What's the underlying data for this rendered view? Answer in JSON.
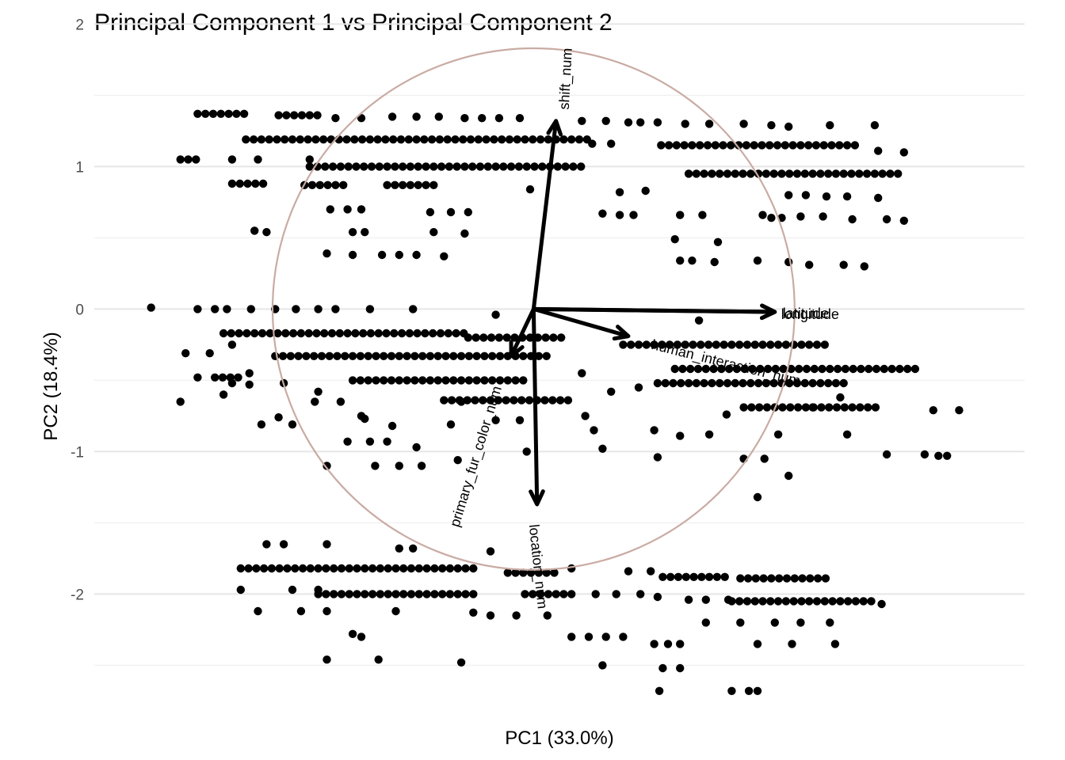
{
  "chart_data": {
    "type": "scatter",
    "title": "Principal Component 1 vs Principal Component 2",
    "xlabel": "PC1 (33.0%)",
    "ylabel": "PC2 (18.4%)",
    "xlim": [
      -2.55,
      2.85
    ],
    "ylim": [
      -2.72,
      2.08
    ],
    "x_ticks": [],
    "y_ticks": [
      -2,
      -1,
      0,
      1,
      2
    ],
    "grid": true,
    "legend": "none",
    "correlation_circle_radius": 1.83,
    "loadings": [
      {
        "label": "shift_num",
        "x": 0.13,
        "y": 1.32
      },
      {
        "label": "latitude",
        "x": 1.4,
        "y": -0.02
      },
      {
        "label": "longitude",
        "x": 1.4,
        "y": -0.02
      },
      {
        "label": "human_interaction_num",
        "x": 0.55,
        "y": -0.19
      },
      {
        "label": "primary_fur_color_num",
        "x": -0.13,
        "y": -0.33
      },
      {
        "label": "location_num",
        "x": 0.02,
        "y": -1.37
      }
    ],
    "band_segments": [
      {
        "y": 1.37,
        "x": [
          -1.95,
          -1.68
        ]
      },
      {
        "y": 1.36,
        "x": [
          -1.48,
          -1.24
        ]
      },
      {
        "y": 1.19,
        "x": [
          -1.67,
          0.32
        ]
      },
      {
        "y": 1.15,
        "x": [
          0.74,
          1.9
        ]
      },
      {
        "y": 1.05,
        "x": [
          -2.05,
          -1.95
        ]
      },
      {
        "y": 1.0,
        "x": [
          -1.3,
          0.3
        ]
      },
      {
        "y": 0.95,
        "x": [
          0.9,
          2.12
        ]
      },
      {
        "y": 0.88,
        "x": [
          -1.75,
          -1.55
        ]
      },
      {
        "y": 0.87,
        "x": [
          -1.33,
          -1.1
        ]
      },
      {
        "y": 0.87,
        "x": [
          -0.85,
          -0.55
        ]
      },
      {
        "y": -0.17,
        "x": [
          -1.8,
          -0.4
        ]
      },
      {
        "y": -0.2,
        "x": [
          -0.38,
          0.2
        ]
      },
      {
        "y": -0.25,
        "x": [
          0.52,
          1.72
        ]
      },
      {
        "y": -0.33,
        "x": [
          -1.5,
          0.1
        ]
      },
      {
        "y": -0.42,
        "x": [
          0.82,
          2.25
        ]
      },
      {
        "y": -0.48,
        "x": [
          -1.85,
          -1.7
        ]
      },
      {
        "y": -0.5,
        "x": [
          -1.05,
          -0.05
        ]
      },
      {
        "y": -0.52,
        "x": [
          0.72,
          1.82
        ]
      },
      {
        "y": -0.64,
        "x": [
          -0.52,
          0.22
        ]
      },
      {
        "y": -0.69,
        "x": [
          1.22,
          2.02
        ]
      },
      {
        "y": -1.82,
        "x": [
          -1.7,
          -0.35
        ]
      },
      {
        "y": -1.85,
        "x": [
          -0.15,
          0.12
        ]
      },
      {
        "y": -1.88,
        "x": [
          0.75,
          1.12
        ]
      },
      {
        "y": -1.89,
        "x": [
          1.2,
          1.72
        ]
      },
      {
        "y": -2.0,
        "x": [
          -1.25,
          -0.35
        ]
      },
      {
        "y": -2.0,
        "x": [
          -0.05,
          0.25
        ]
      },
      {
        "y": -2.05,
        "x": [
          1.15,
          1.97
        ]
      }
    ],
    "points": [
      [
        -2.22,
        0.01
      ],
      [
        -1.95,
        0.0
      ],
      [
        -1.85,
        0.0
      ],
      [
        -1.78,
        0.0
      ],
      [
        -1.64,
        0.0
      ],
      [
        -1.5,
        0.0
      ],
      [
        -1.38,
        0.0
      ],
      [
        -1.25,
        0.0
      ],
      [
        -1.15,
        0.0
      ],
      [
        -0.95,
        0.0
      ],
      [
        -0.7,
        0.0
      ],
      [
        -0.22,
        -0.04
      ],
      [
        0.96,
        -0.08
      ],
      [
        -2.02,
        -0.31
      ],
      [
        -1.88,
        -0.31
      ],
      [
        -1.95,
        -0.48
      ],
      [
        -1.75,
        -0.52
      ],
      [
        -2.05,
        -0.65
      ],
      [
        -1.8,
        -0.6
      ],
      [
        -1.65,
        -0.45
      ],
      [
        -1.45,
        -0.52
      ],
      [
        -1.58,
        -0.81
      ],
      [
        -1.48,
        -0.76
      ],
      [
        -1.4,
        -0.81
      ],
      [
        -1.27,
        -0.65
      ],
      [
        -1.12,
        -0.65
      ],
      [
        -0.98,
        -0.77
      ],
      [
        -1.08,
        -0.93
      ],
      [
        -0.95,
        -0.93
      ],
      [
        -0.85,
        -0.93
      ],
      [
        -0.82,
        -0.82
      ],
      [
        -0.68,
        -0.97
      ],
      [
        -0.48,
        -0.81
      ],
      [
        -0.42,
        -0.65
      ],
      [
        -0.22,
        -0.78
      ],
      [
        -0.08,
        -0.78
      ],
      [
        -0.04,
        -1.0
      ],
      [
        -0.44,
        -1.06
      ],
      [
        -0.65,
        -1.1
      ],
      [
        -0.78,
        -1.1
      ],
      [
        -0.92,
        -1.1
      ],
      [
        -1.2,
        -1.1
      ],
      [
        -1.65,
        -0.53
      ],
      [
        -1.75,
        -0.25
      ],
      [
        -1.0,
        -0.75
      ],
      [
        -1.25,
        -0.58
      ],
      [
        0.28,
        -0.45
      ],
      [
        0.45,
        -0.58
      ],
      [
        0.3,
        -0.75
      ],
      [
        0.35,
        -0.85
      ],
      [
        0.4,
        -0.98
      ],
      [
        0.7,
        -0.85
      ],
      [
        0.85,
        -0.89
      ],
      [
        1.02,
        -0.88
      ],
      [
        1.12,
        -0.74
      ],
      [
        0.72,
        -1.04
      ],
      [
        1.22,
        -1.05
      ],
      [
        1.34,
        -1.05
      ],
      [
        1.48,
        -1.17
      ],
      [
        1.42,
        -0.88
      ],
      [
        1.62,
        -0.69
      ],
      [
        1.78,
        -0.62
      ],
      [
        1.82,
        -0.88
      ],
      [
        2.05,
        -1.02
      ],
      [
        2.27,
        -1.02
      ],
      [
        2.35,
        -1.03
      ],
      [
        2.4,
        -1.03
      ],
      [
        2.32,
        -0.71
      ],
      [
        2.47,
        -0.71
      ],
      [
        1.3,
        -1.32
      ],
      [
        0.61,
        -0.55
      ],
      [
        -1.62,
        0.55
      ],
      [
        -1.55,
        0.54
      ],
      [
        -1.18,
        0.7
      ],
      [
        -1.08,
        0.7
      ],
      [
        -1.0,
        0.7
      ],
      [
        -1.05,
        0.54
      ],
      [
        -0.98,
        0.54
      ],
      [
        -0.58,
        0.54
      ],
      [
        -0.4,
        0.53
      ],
      [
        -0.6,
        0.68
      ],
      [
        -0.48,
        0.68
      ],
      [
        -0.38,
        0.68
      ],
      [
        -1.2,
        0.39
      ],
      [
        -1.05,
        0.38
      ],
      [
        -0.88,
        0.38
      ],
      [
        -0.78,
        0.38
      ],
      [
        -0.68,
        0.38
      ],
      [
        -0.52,
        0.37
      ],
      [
        0.4,
        0.67
      ],
      [
        0.5,
        0.66
      ],
      [
        0.58,
        0.66
      ],
      [
        0.85,
        0.66
      ],
      [
        0.98,
        0.66
      ],
      [
        0.82,
        0.49
      ],
      [
        0.85,
        0.34
      ],
      [
        0.92,
        0.34
      ],
      [
        1.07,
        0.47
      ],
      [
        1.05,
        0.33
      ],
      [
        1.33,
        0.66
      ],
      [
        1.38,
        0.64
      ],
      [
        1.44,
        0.64
      ],
      [
        1.3,
        0.34
      ],
      [
        1.48,
        0.33
      ],
      [
        1.55,
        0.65
      ],
      [
        1.68,
        0.65
      ],
      [
        1.85,
        0.63
      ],
      [
        2.05,
        0.63
      ],
      [
        2.15,
        0.62
      ],
      [
        1.48,
        0.8
      ],
      [
        1.58,
        0.8
      ],
      [
        1.7,
        0.79
      ],
      [
        1.82,
        0.79
      ],
      [
        2.0,
        0.78
      ],
      [
        1.6,
        0.31
      ],
      [
        1.8,
        0.31
      ],
      [
        1.92,
        0.3
      ],
      [
        -1.75,
        1.05
      ],
      [
        -1.6,
        1.05
      ],
      [
        -1.3,
        1.05
      ],
      [
        -0.82,
        1.35
      ],
      [
        -0.68,
        1.35
      ],
      [
        -0.55,
        1.35
      ],
      [
        -0.4,
        1.34
      ],
      [
        -0.3,
        1.34
      ],
      [
        -0.2,
        1.34
      ],
      [
        -0.08,
        1.34
      ],
      [
        0.28,
        1.32
      ],
      [
        0.42,
        1.32
      ],
      [
        0.55,
        1.31
      ],
      [
        0.62,
        1.31
      ],
      [
        0.72,
        1.31
      ],
      [
        0.88,
        1.3
      ],
      [
        1.02,
        1.3
      ],
      [
        1.22,
        1.3
      ],
      [
        1.38,
        1.29
      ],
      [
        1.48,
        1.28
      ],
      [
        1.72,
        1.29
      ],
      [
        1.98,
        1.29
      ],
      [
        2.0,
        1.11
      ],
      [
        2.15,
        1.1
      ],
      [
        -1.15,
        1.34
      ],
      [
        -1.0,
        1.34
      ],
      [
        0.5,
        0.82
      ],
      [
        0.65,
        0.83
      ],
      [
        -0.02,
        0.84
      ],
      [
        0.34,
        1.16
      ],
      [
        0.45,
        1.16
      ],
      [
        -1.6,
        -2.12
      ],
      [
        -1.35,
        -2.12
      ],
      [
        -1.2,
        -2.12
      ],
      [
        -0.8,
        -2.12
      ],
      [
        -0.35,
        -2.13
      ],
      [
        -0.25,
        -2.15
      ],
      [
        -0.1,
        -2.15
      ],
      [
        0.08,
        -2.15
      ],
      [
        -1.05,
        -2.28
      ],
      [
        -1.0,
        -2.3
      ],
      [
        -1.2,
        -2.46
      ],
      [
        -0.9,
        -2.46
      ],
      [
        -0.42,
        -2.48
      ],
      [
        0.22,
        -2.3
      ],
      [
        0.32,
        -2.3
      ],
      [
        0.42,
        -2.3
      ],
      [
        0.52,
        -2.3
      ],
      [
        0.4,
        -2.5
      ],
      [
        0.7,
        -2.35
      ],
      [
        0.78,
        -2.35
      ],
      [
        0.85,
        -2.35
      ],
      [
        0.75,
        -2.52
      ],
      [
        0.85,
        -2.52
      ],
      [
        0.73,
        -2.68
      ],
      [
        1.15,
        -2.68
      ],
      [
        1.25,
        -2.68
      ],
      [
        1.3,
        -2.68
      ],
      [
        1.3,
        -2.35
      ],
      [
        1.5,
        -2.35
      ],
      [
        1.75,
        -2.35
      ],
      [
        1.0,
        -2.2
      ],
      [
        1.2,
        -2.2
      ],
      [
        1.4,
        -2.2
      ],
      [
        1.55,
        -2.2
      ],
      [
        1.72,
        -2.2
      ],
      [
        -1.55,
        -1.65
      ],
      [
        -1.45,
        -1.65
      ],
      [
        -1.2,
        -1.65
      ],
      [
        -0.78,
        -1.68
      ],
      [
        -0.7,
        -1.68
      ],
      [
        -0.25,
        -1.7
      ],
      [
        -1.7,
        -1.97
      ],
      [
        -1.4,
        -1.97
      ],
      [
        -1.25,
        -1.97
      ],
      [
        0.22,
        -1.82
      ],
      [
        0.55,
        -1.84
      ],
      [
        0.68,
        -1.84
      ],
      [
        0.36,
        -2.0
      ],
      [
        0.48,
        -2.0
      ],
      [
        0.62,
        -2.0
      ],
      [
        0.72,
        -2.02
      ],
      [
        0.9,
        -2.04
      ],
      [
        1.0,
        -2.04
      ],
      [
        1.13,
        -2.04
      ],
      [
        2.02,
        -2.07
      ]
    ]
  }
}
